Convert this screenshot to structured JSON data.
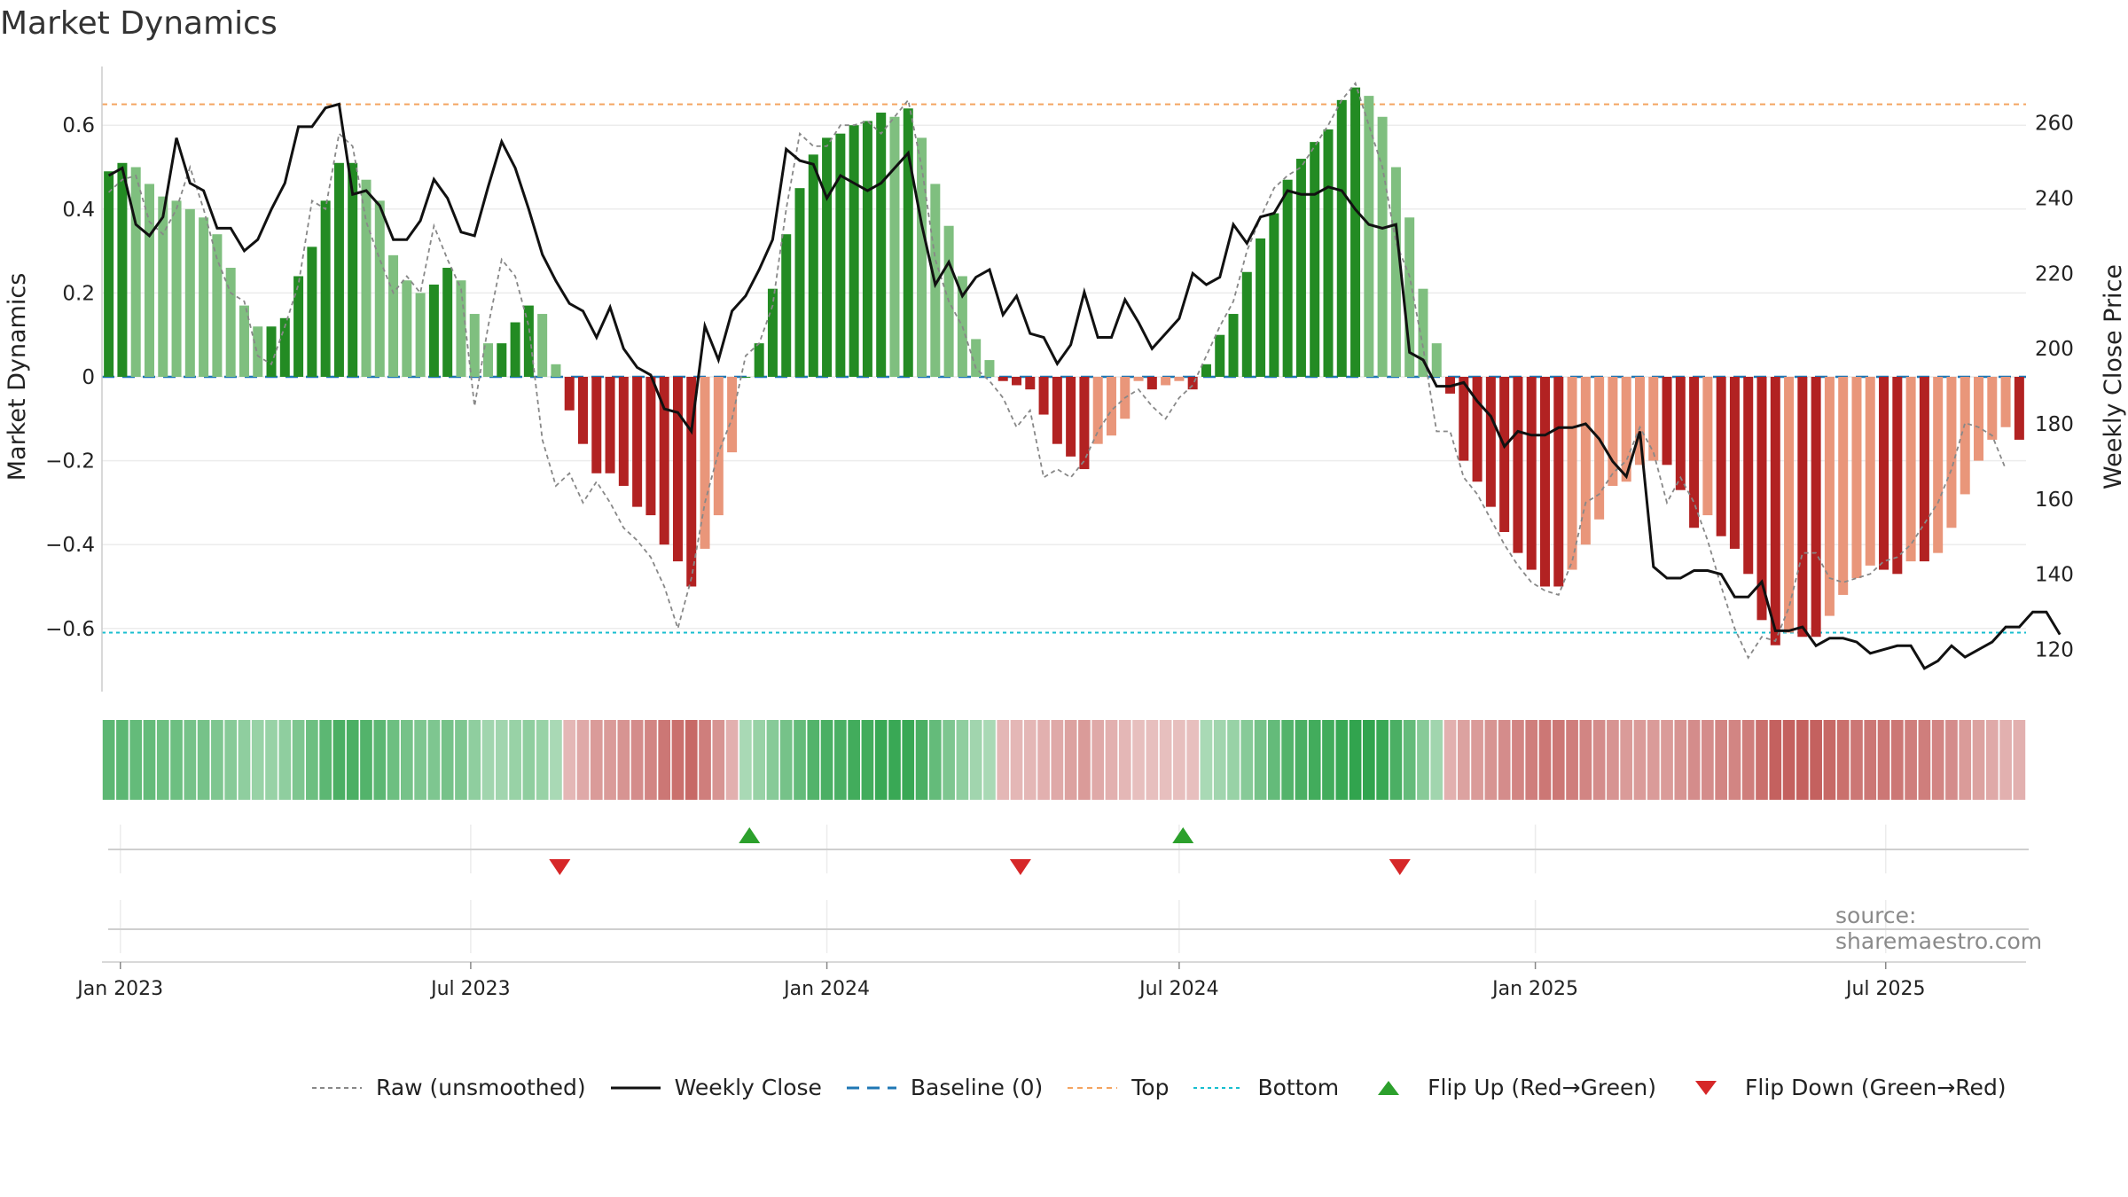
{
  "title": "Market Dynamics",
  "source": "source: sharemaestro.com",
  "colors": {
    "strong_green": "#238b23",
    "light_green": "#7fbf7f",
    "strong_red": "#b22222",
    "light_red": "#e9967a",
    "close_line": "#111111",
    "raw_line": "#888888",
    "baseline": "#1f77b4",
    "top_line": "#f4a460",
    "bottom_line": "#17becf",
    "flip_up": "#2ca02c",
    "flip_down": "#d62728"
  },
  "legend": [
    {
      "label": "Raw (unsmoothed)",
      "style": "raw"
    },
    {
      "label": "Weekly Close",
      "style": "close"
    },
    {
      "label": "Baseline (0)",
      "style": "baseline"
    },
    {
      "label": "Top",
      "style": "top"
    },
    {
      "label": "Bottom",
      "style": "bottom"
    },
    {
      "label": "Flip Up (Red→Green)",
      "style": "flip_up"
    },
    {
      "label": "Flip Down (Green→Red)",
      "style": "flip_down"
    }
  ],
  "chart_data": {
    "type": "bar",
    "start_date": "2022-12-26",
    "x_ticks": [
      "Jan 2023",
      "Jul 2023",
      "Jan 2024",
      "Jul 2024",
      "Jan 2025",
      "Jul 2025"
    ],
    "x_tick_dates": [
      "2023-01-01",
      "2023-07-01",
      "2024-01-01",
      "2024-07-01",
      "2025-01-01",
      "2025-07-01"
    ],
    "ylabel": "Market Dynamics",
    "ylabel_right": "Weekly Close Price",
    "ylim": [
      -0.74,
      0.74
    ],
    "ylim_right": [
      110,
      275
    ],
    "yticks": [
      -0.6,
      -0.4,
      -0.2,
      0,
      0.2,
      0.4,
      0.6
    ],
    "yticks_labels": [
      "−0.6",
      "−0.4",
      "−0.2",
      "0",
      "0.2",
      "0.4",
      "0.6"
    ],
    "yticks_right": [
      120,
      140,
      160,
      180,
      200,
      220,
      240,
      260
    ],
    "top_level": 0.65,
    "bottom_level": -0.61,
    "baseline": 0,
    "grid": true,
    "legend_position": "bottom",
    "series": [
      {
        "name": "Market Dynamics",
        "values": [
          0.49,
          0.51,
          0.5,
          0.46,
          0.43,
          0.42,
          0.4,
          0.38,
          0.34,
          0.26,
          0.17,
          0.12,
          0.12,
          0.14,
          0.24,
          0.31,
          0.42,
          0.51,
          0.51,
          0.47,
          0.42,
          0.29,
          0.23,
          0.2,
          0.22,
          0.26,
          0.23,
          0.15,
          0.08,
          0.08,
          0.13,
          0.17,
          0.15,
          0.03,
          -0.08,
          -0.16,
          -0.23,
          -0.23,
          -0.26,
          -0.31,
          -0.33,
          -0.4,
          -0.44,
          -0.5,
          -0.41,
          -0.33,
          -0.18,
          0,
          0.08,
          0.21,
          0.34,
          0.45,
          0.53,
          0.57,
          0.58,
          0.6,
          0.61,
          0.63,
          0.62,
          0.64,
          0.57,
          0.46,
          0.36,
          0.24,
          0.09,
          0.04,
          -0.01,
          -0.02,
          -0.03,
          -0.09,
          -0.16,
          -0.19,
          -0.22,
          -0.16,
          -0.14,
          -0.1,
          -0.01,
          -0.03,
          -0.02,
          -0.01,
          -0.03,
          0.03,
          0.1,
          0.15,
          0.25,
          0.33,
          0.39,
          0.47,
          0.52,
          0.56,
          0.59,
          0.66,
          0.69,
          0.67,
          0.62,
          0.5,
          0.38,
          0.21,
          0.08,
          -0.04,
          -0.2,
          -0.25,
          -0.31,
          -0.37,
          -0.42,
          -0.46,
          -0.5,
          -0.5,
          -0.46,
          -0.4,
          -0.34,
          -0.26,
          -0.25,
          -0.21,
          -0.2,
          -0.21,
          -0.27,
          -0.36,
          -0.33,
          -0.38,
          -0.41,
          -0.47,
          -0.58,
          -0.64,
          -0.61,
          -0.62,
          -0.62,
          -0.57,
          -0.52,
          -0.48,
          -0.45,
          -0.46,
          -0.47,
          -0.44,
          -0.44,
          -0.42,
          -0.36,
          -0.28,
          -0.2,
          -0.15,
          -0.12,
          -0.15
        ]
      },
      {
        "name": "Raw (unsmoothed)",
        "values": [
          0.44,
          0.47,
          0.48,
          0.37,
          0.34,
          0.4,
          0.5,
          0.4,
          0.28,
          0.2,
          0.18,
          0.05,
          0.03,
          0.12,
          0.22,
          0.42,
          0.4,
          0.58,
          0.55,
          0.37,
          0.28,
          0.2,
          0.24,
          0.2,
          0.36,
          0.28,
          0.21,
          -0.07,
          0.12,
          0.28,
          0.24,
          0.12,
          -0.15,
          -0.26,
          -0.23,
          -0.3,
          -0.25,
          -0.3,
          -0.36,
          -0.39,
          -0.43,
          -0.5,
          -0.6,
          -0.48,
          -0.3,
          -0.18,
          -0.1,
          0.05,
          0.08,
          0.17,
          0.4,
          0.58,
          0.55,
          0.55,
          0.6,
          0.6,
          0.61,
          0.58,
          0.62,
          0.66,
          0.5,
          0.28,
          0.18,
          0.12,
          0.02,
          -0.01,
          -0.05,
          -0.12,
          -0.08,
          -0.24,
          -0.22,
          -0.24,
          -0.2,
          -0.13,
          -0.08,
          -0.05,
          -0.03,
          -0.07,
          -0.1,
          -0.05,
          -0.02,
          0.05,
          0.12,
          0.18,
          0.3,
          0.38,
          0.45,
          0.48,
          0.5,
          0.55,
          0.6,
          0.66,
          0.7,
          0.6,
          0.5,
          0.32,
          0.24,
          0.07,
          -0.13,
          -0.13,
          -0.24,
          -0.28,
          -0.34,
          -0.4,
          -0.45,
          -0.49,
          -0.51,
          -0.52,
          -0.44,
          -0.3,
          -0.28,
          -0.23,
          -0.2,
          -0.12,
          -0.18,
          -0.3,
          -0.24,
          -0.3,
          -0.39,
          -0.5,
          -0.6,
          -0.67,
          -0.62,
          -0.63,
          -0.55,
          -0.42,
          -0.42,
          -0.48,
          -0.49,
          -0.48,
          -0.47,
          -0.44,
          -0.43,
          -0.4,
          -0.35,
          -0.3,
          -0.22,
          -0.11,
          -0.12,
          -0.14,
          -0.22
        ]
      },
      {
        "name": "Weekly Close",
        "values": [
          246,
          248,
          233,
          230,
          235,
          256,
          244,
          242,
          232,
          232,
          226,
          229,
          237,
          244,
          259,
          259,
          264,
          265,
          241,
          242,
          238,
          229,
          229,
          234,
          245,
          240,
          231,
          230,
          243,
          255,
          248,
          237,
          225,
          218,
          212,
          210,
          203,
          211,
          200,
          195,
          193,
          184,
          183,
          178,
          206,
          197,
          210,
          214,
          221,
          229,
          253,
          250,
          249,
          240,
          246,
          244,
          242,
          244,
          248,
          252,
          233,
          217,
          223,
          214,
          219,
          221,
          209,
          214,
          204,
          203,
          196,
          201,
          215,
          203,
          203,
          213,
          207,
          200,
          204,
          208,
          220,
          217,
          219,
          233,
          228,
          235,
          236,
          242,
          241,
          241,
          243,
          242,
          237,
          233,
          232,
          233,
          199,
          197,
          190,
          190,
          191,
          186,
          182,
          174,
          178,
          177,
          177,
          179,
          179,
          180,
          176,
          170,
          166,
          178,
          142,
          139,
          139,
          141,
          141,
          140,
          134,
          134,
          138,
          125,
          125,
          126,
          121,
          123,
          123,
          122,
          119,
          120,
          121,
          121,
          115,
          117,
          121,
          118,
          120,
          122,
          126,
          126,
          130,
          130,
          124
        ]
      }
    ],
    "regime_strip": [
      0.75,
      0.75,
      0.7,
      0.7,
      0.65,
      0.65,
      0.6,
      0.6,
      0.55,
      0.5,
      0.45,
      0.4,
      0.4,
      0.45,
      0.55,
      0.65,
      0.75,
      0.85,
      0.85,
      0.8,
      0.75,
      0.65,
      0.6,
      0.55,
      0.55,
      0.6,
      0.55,
      0.45,
      0.35,
      0.35,
      0.4,
      0.45,
      0.4,
      0.3,
      -0.3,
      -0.4,
      -0.5,
      -0.5,
      -0.55,
      -0.6,
      -0.65,
      -0.75,
      -0.8,
      -0.85,
      -0.7,
      -0.55,
      -0.35,
      0.3,
      0.4,
      0.5,
      0.6,
      0.7,
      0.8,
      0.85,
      0.85,
      0.9,
      0.9,
      0.95,
      0.95,
      0.95,
      0.85,
      0.7,
      0.55,
      0.45,
      0.35,
      0.3,
      -0.3,
      -0.3,
      -0.3,
      -0.35,
      -0.4,
      -0.45,
      -0.5,
      -0.4,
      -0.35,
      -0.3,
      -0.25,
      -0.25,
      -0.25,
      -0.25,
      -0.25,
      0.3,
      0.35,
      0.4,
      0.5,
      0.6,
      0.7,
      0.8,
      0.85,
      0.9,
      0.9,
      0.95,
      1,
      1,
      0.95,
      0.85,
      0.7,
      0.5,
      0.35,
      -0.35,
      -0.45,
      -0.5,
      -0.55,
      -0.6,
      -0.65,
      -0.7,
      -0.75,
      -0.75,
      -0.7,
      -0.65,
      -0.6,
      -0.55,
      -0.5,
      -0.5,
      -0.5,
      -0.5,
      -0.55,
      -0.6,
      -0.6,
      -0.65,
      -0.65,
      -0.7,
      -0.8,
      -0.9,
      -0.9,
      -0.9,
      -0.9,
      -0.85,
      -0.8,
      -0.75,
      -0.75,
      -0.75,
      -0.75,
      -0.7,
      -0.7,
      -0.65,
      -0.6,
      -0.5,
      -0.45,
      -0.4,
      -0.35,
      -0.35
    ],
    "flips": [
      {
        "date": "2023-08-16",
        "dir": "down"
      },
      {
        "date": "2023-11-22",
        "dir": "up"
      },
      {
        "date": "2024-04-10",
        "dir": "down"
      },
      {
        "date": "2024-07-03",
        "dir": "up"
      },
      {
        "date": "2024-10-23",
        "dir": "down"
      }
    ]
  }
}
